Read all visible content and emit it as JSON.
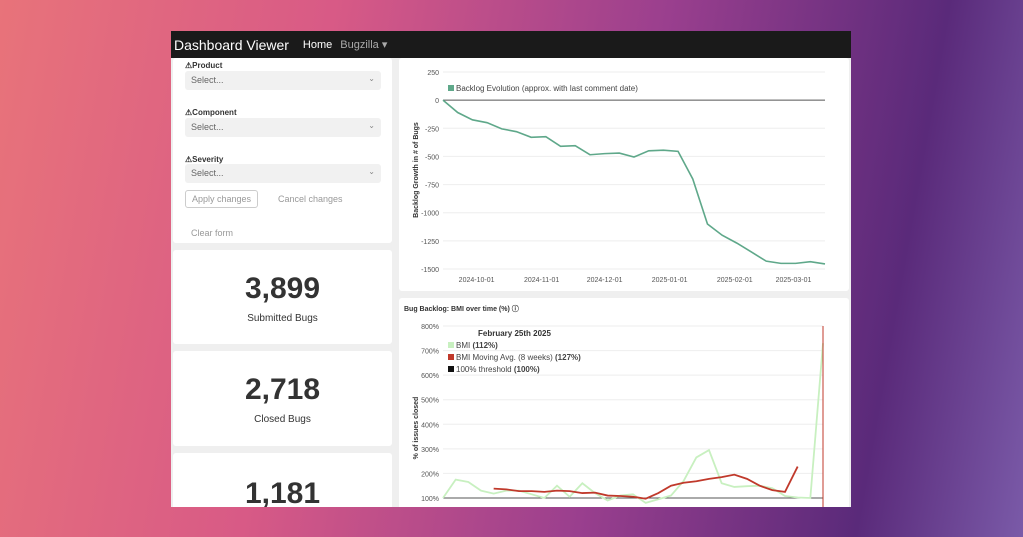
{
  "nav": {
    "title": "Dashboard Viewer",
    "home": "Home",
    "bugzilla": "Bugzilla ▾"
  },
  "filters": {
    "product": {
      "label": "Product",
      "placeholder": "Select..."
    },
    "component": {
      "label": "Component",
      "placeholder": "Select..."
    },
    "severity": {
      "label": "Severity",
      "placeholder": "Select..."
    },
    "apply": "Apply changes",
    "cancel": "Cancel changes",
    "clear": "Clear form"
  },
  "stats": [
    {
      "value": "3,899",
      "label": "Submitted Bugs"
    },
    {
      "value": "2,718",
      "label": "Closed Bugs"
    },
    {
      "value": "1,181",
      "label": ""
    }
  ],
  "chart_data": [
    {
      "type": "line",
      "ylabel": "Backlog Growth in # of Bugs",
      "ylim": [
        -1500,
        250
      ],
      "yticks": [
        250,
        0,
        -250,
        -500,
        -750,
        -1000,
        -1250,
        -1500
      ],
      "xticks": [
        "2024-10-01",
        "2024-11-01",
        "2024-12-01",
        "2025-01-01",
        "2025-02-01",
        "2025-03-01"
      ],
      "grid": true,
      "legend": "top-left",
      "color": "#5fa88a",
      "series": [
        {
          "name": "Backlog Evolution (approx. with last comment date)",
          "points": [
            [
              "2024-09-15",
              0
            ],
            [
              "2024-09-22",
              -110
            ],
            [
              "2024-09-29",
              -175
            ],
            [
              "2024-10-06",
              -200
            ],
            [
              "2024-10-13",
              -255
            ],
            [
              "2024-10-20",
              -280
            ],
            [
              "2024-10-27",
              -330
            ],
            [
              "2024-11-03",
              -325
            ],
            [
              "2024-11-10",
              -410
            ],
            [
              "2024-11-17",
              -405
            ],
            [
              "2024-11-24",
              -485
            ],
            [
              "2024-12-01",
              -475
            ],
            [
              "2024-12-08",
              -470
            ],
            [
              "2024-12-15",
              -505
            ],
            [
              "2024-12-22",
              -450
            ],
            [
              "2024-12-29",
              -445
            ],
            [
              "2025-01-05",
              -455
            ],
            [
              "2025-01-12",
              -700
            ],
            [
              "2025-01-19",
              -1100
            ],
            [
              "2025-01-26",
              -1200
            ],
            [
              "2025-02-02",
              -1270
            ],
            [
              "2025-02-09",
              -1350
            ],
            [
              "2025-02-16",
              -1430
            ],
            [
              "2025-02-23",
              -1450
            ],
            [
              "2025-03-02",
              -1450
            ],
            [
              "2025-03-09",
              -1435
            ],
            [
              "2025-03-16",
              -1455
            ]
          ]
        }
      ]
    },
    {
      "type": "line",
      "title": "Bug Backlog: BMI over time (%) ⓘ",
      "ylabel": "% of issues closed",
      "ylim": [
        100,
        800
      ],
      "yticks": [
        "800%",
        "700%",
        "600%",
        "500%",
        "400%",
        "300%",
        "200%",
        "100%"
      ],
      "grid": true,
      "tooltip": {
        "date": "February 25th 2025",
        "rows": [
          {
            "name": "BMI",
            "value": "(112%)",
            "color": "#c8f0c0"
          },
          {
            "name": "BMI Moving Avg. (8 weeks)",
            "value": "(127%)",
            "color": "#c0392b"
          },
          {
            "name": "100% threshold",
            "value": "(100%)",
            "color": "#111111"
          }
        ]
      },
      "series": [
        {
          "name": "BMI",
          "color": "#c8f0c0",
          "values": [
            100,
            175,
            165,
            130,
            118,
            130,
            130,
            115,
            100,
            150,
            105,
            160,
            120,
            90,
            110,
            115,
            80,
            95,
            110,
            170,
            265,
            295,
            160,
            145,
            148,
            150,
            140,
            108,
            102,
            100,
            730
          ]
        },
        {
          "name": "BMI Moving Avg. (8 weeks)",
          "color": "#c0392b",
          "values": [
            null,
            null,
            null,
            null,
            138,
            135,
            128,
            128,
            125,
            130,
            128,
            120,
            122,
            110,
            108,
            105,
            97,
            120,
            150,
            162,
            168,
            178,
            185,
            195,
            178,
            150,
            132,
            125,
            228,
            null,
            null
          ]
        },
        {
          "name": "100% threshold",
          "color": "#555555",
          "values": [
            100,
            100,
            100,
            100,
            100,
            100,
            100,
            100,
            100,
            100,
            100,
            100,
            100,
            100,
            100,
            100,
            100,
            100,
            100,
            100,
            100,
            100,
            100,
            100,
            100,
            100,
            100,
            100,
            100,
            100,
            100
          ]
        }
      ]
    }
  ]
}
